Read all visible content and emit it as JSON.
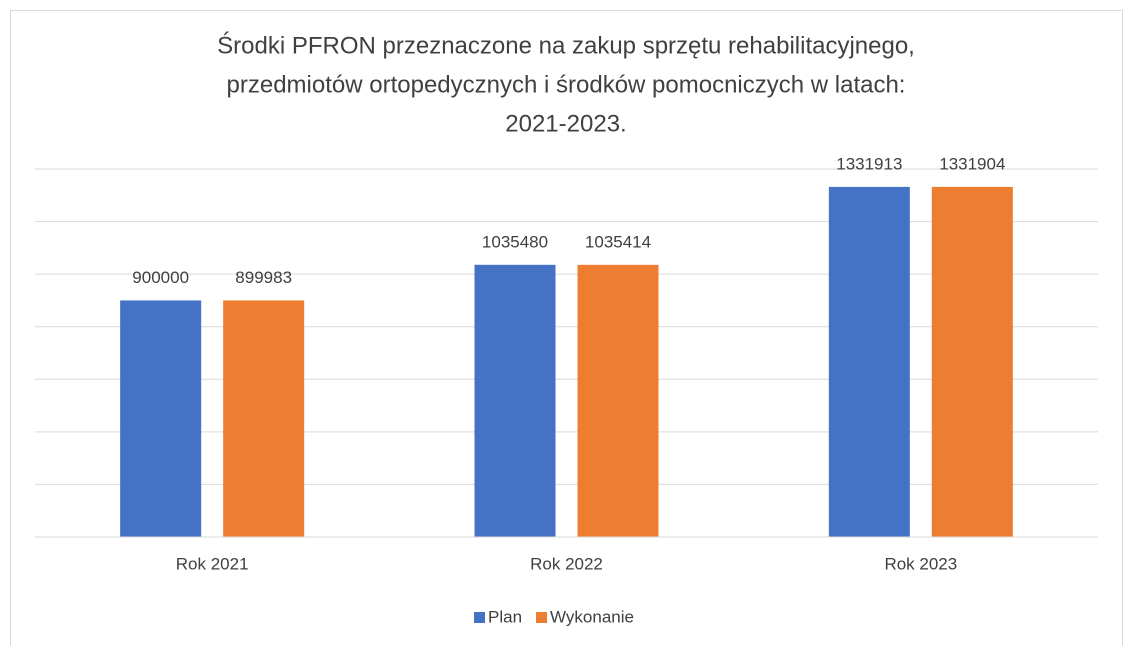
{
  "chart_data": {
    "type": "bar",
    "title": [
      "Środki PFRON przeznaczone na zakup sprzętu rehabilitacyjnego,",
      "przedmiotów ortopedycznych i środków pomocniczych w latach:",
      "2021-2023."
    ],
    "categories": [
      "Rok 2021",
      "Rok 2022",
      "Rok 2023"
    ],
    "series": [
      {
        "name": "Plan",
        "color": "#4472c4",
        "values": [
          900000,
          1035480,
          1331913
        ]
      },
      {
        "name": "Wykonanie",
        "color": "#ed7d31",
        "values": [
          899983,
          1035414,
          1331904
        ]
      }
    ],
    "ylim": [
      0,
      1400000
    ],
    "yticks": [
      0,
      200000,
      400000,
      600000,
      800000,
      1000000,
      1200000,
      1400000
    ],
    "grid": true,
    "legend": "bottom"
  }
}
